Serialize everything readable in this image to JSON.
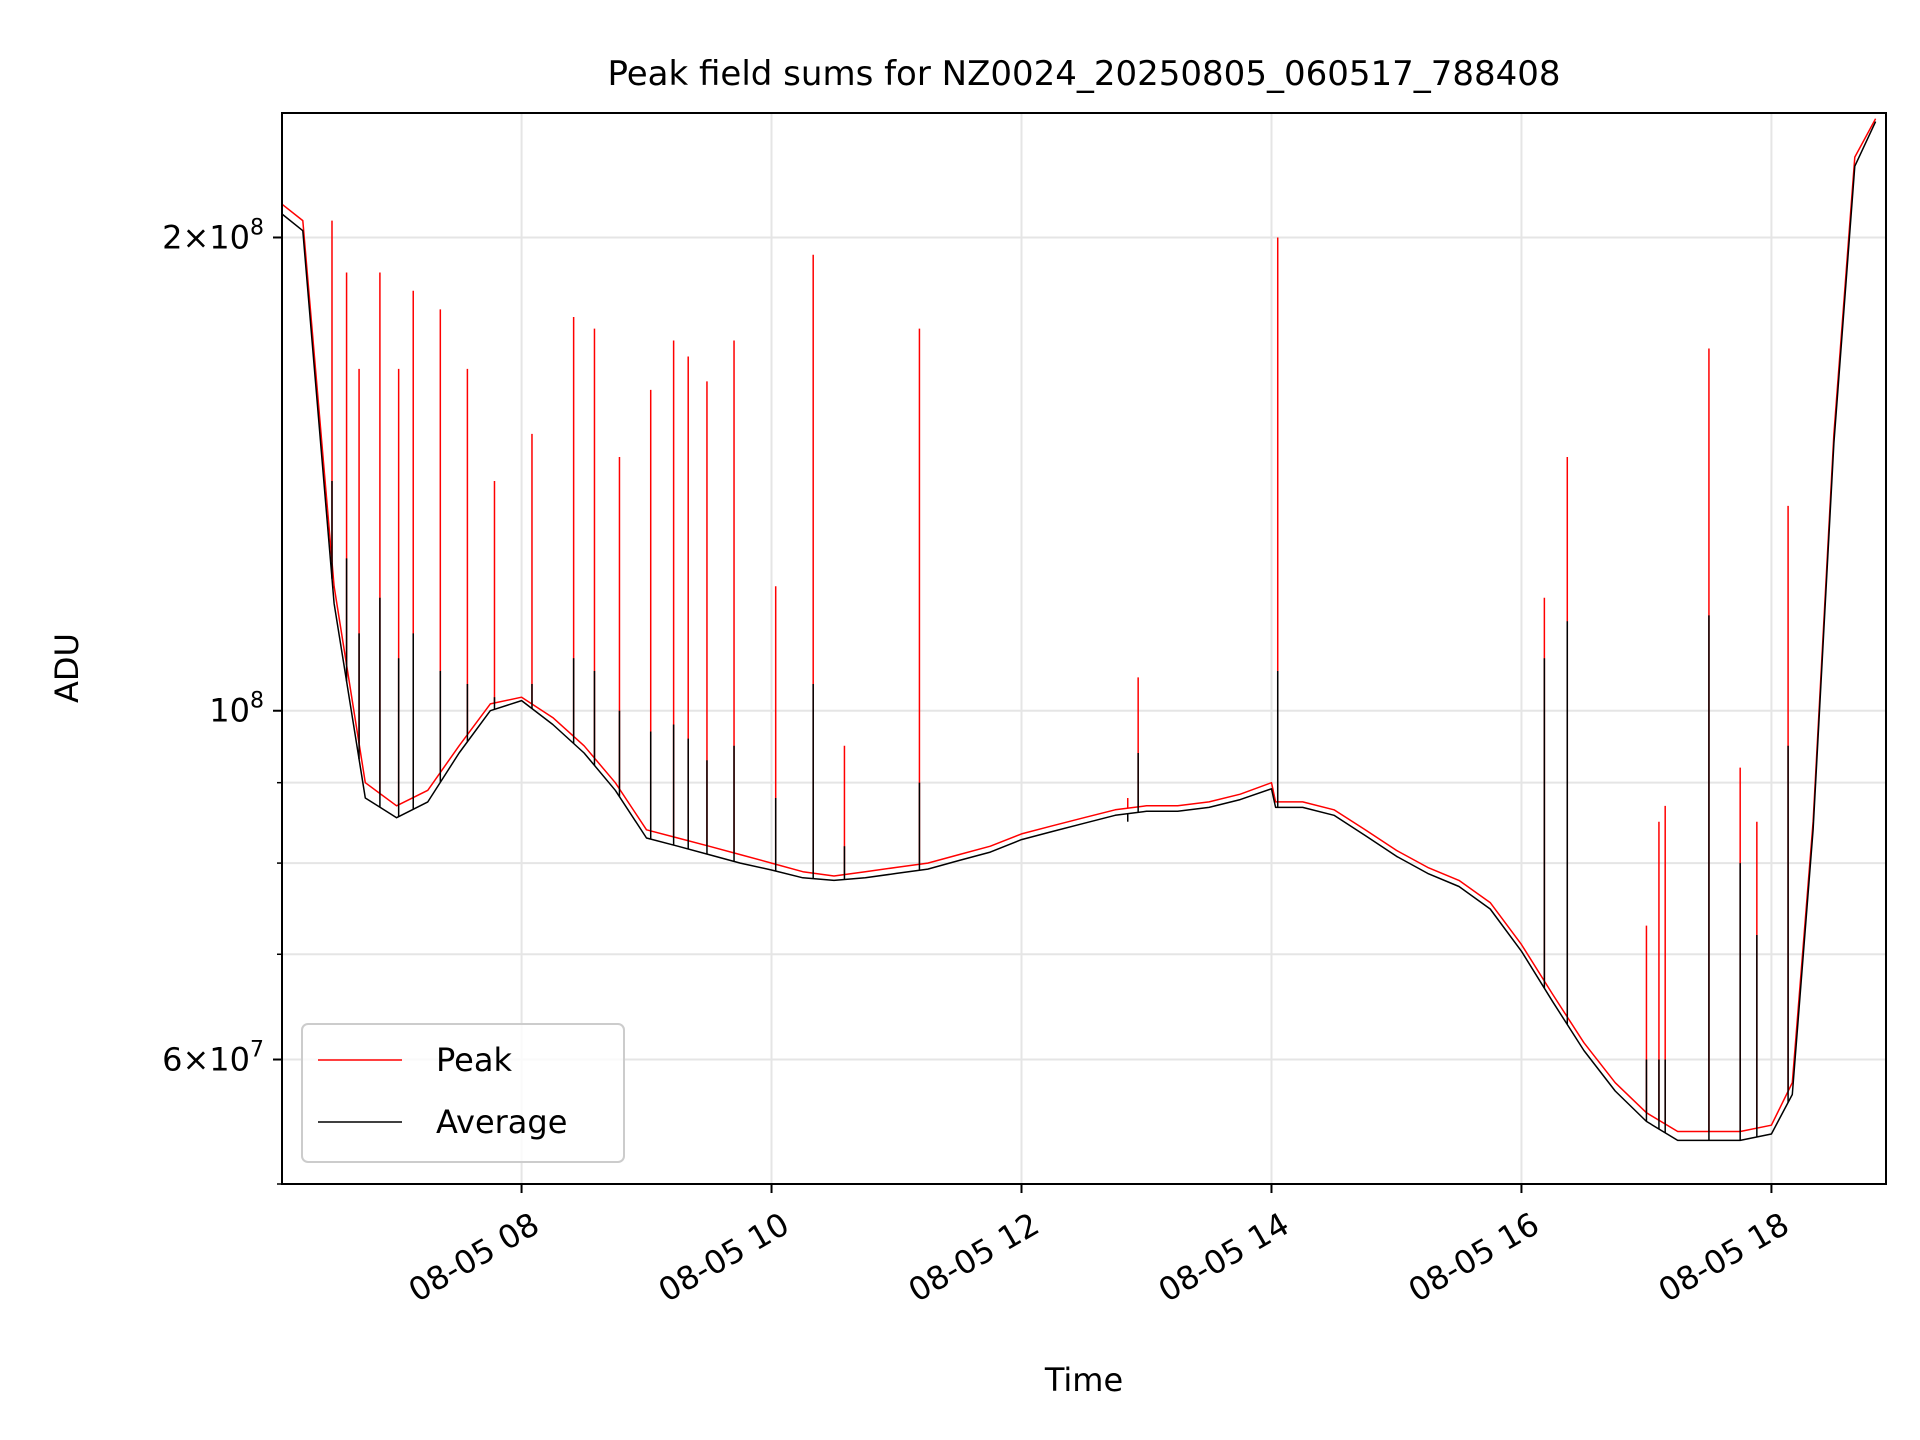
{
  "chart_data": {
    "type": "line",
    "title": "Peak field sums for NZ0024_20250805_060517_788408",
    "xlabel": "Time",
    "ylabel": "ADU",
    "y_scale": "log",
    "ylim": [
      50000000,
      240000000
    ],
    "xlim": [
      "2025-08-05 06:05",
      "2025-08-05 18:55"
    ],
    "grid": true,
    "legend_position": "lower-left",
    "x_tick_labels": [
      "08-05 08",
      "08-05 10",
      "08-05 12",
      "08-05 14",
      "08-05 16",
      "08-05 18"
    ],
    "x_tick_times": [
      "2025-08-05 08:00",
      "2025-08-05 10:00",
      "2025-08-05 12:00",
      "2025-08-05 14:00",
      "2025-08-05 16:00",
      "2025-08-05 18:00"
    ],
    "y_tick_labels": [
      {
        "value": 200000000,
        "mantissa": "2",
        "exponent": "8"
      },
      {
        "value": 100000000,
        "mantissa": "",
        "exponent": "8"
      },
      {
        "value": 60000000,
        "mantissa": "6",
        "exponent": "7"
      }
    ],
    "y_minor_ticks": [
      50000000,
      70000000,
      80000000,
      90000000
    ],
    "series": [
      {
        "name": "Peak",
        "color": "#ff0000",
        "x": [
          "2025-08-05 06:05",
          "2025-08-05 06:15",
          "2025-08-05 06:30",
          "2025-08-05 06:45",
          "2025-08-05 07:00",
          "2025-08-05 07:15",
          "2025-08-05 07:30",
          "2025-08-05 07:45",
          "2025-08-05 08:00",
          "2025-08-05 08:15",
          "2025-08-05 08:30",
          "2025-08-05 08:45",
          "2025-08-05 09:00",
          "2025-08-05 09:15",
          "2025-08-05 09:30",
          "2025-08-05 09:45",
          "2025-08-05 10:00",
          "2025-08-05 10:15",
          "2025-08-05 10:30",
          "2025-08-05 10:45",
          "2025-08-05 11:00",
          "2025-08-05 11:15",
          "2025-08-05 11:30",
          "2025-08-05 11:45",
          "2025-08-05 12:00",
          "2025-08-05 12:15",
          "2025-08-05 12:30",
          "2025-08-05 12:45",
          "2025-08-05 13:00",
          "2025-08-05 13:15",
          "2025-08-05 13:30",
          "2025-08-05 13:45",
          "2025-08-05 14:00",
          "2025-08-05 14:02",
          "2025-08-05 14:15",
          "2025-08-05 14:30",
          "2025-08-05 14:45",
          "2025-08-05 15:00",
          "2025-08-05 15:15",
          "2025-08-05 15:30",
          "2025-08-05 15:45",
          "2025-08-05 16:00",
          "2025-08-05 16:15",
          "2025-08-05 16:30",
          "2025-08-05 16:45",
          "2025-08-05 17:00",
          "2025-08-05 17:15",
          "2025-08-05 17:30",
          "2025-08-05 17:45",
          "2025-08-05 18:00",
          "2025-08-05 18:10",
          "2025-08-05 18:20",
          "2025-08-05 18:30",
          "2025-08-05 18:40",
          "2025-08-05 18:50"
        ],
        "y": [
          210000000,
          205000000,
          120000000,
          90000000,
          87000000,
          89000000,
          95000000,
          101000000,
          102000000,
          99000000,
          95000000,
          90000000,
          84000000,
          83000000,
          82000000,
          81000000,
          80000000,
          79000000,
          78500000,
          79000000,
          79500000,
          80000000,
          81000000,
          82000000,
          83500000,
          84500000,
          85500000,
          86500000,
          87000000,
          87000000,
          87500000,
          88500000,
          90000000,
          87500000,
          87500000,
          86500000,
          84000000,
          81500000,
          79500000,
          78000000,
          75500000,
          71000000,
          66000000,
          61500000,
          58000000,
          55500000,
          54000000,
          54000000,
          54000000,
          54500000,
          58000000,
          85000000,
          150000000,
          225000000,
          238000000
        ]
      },
      {
        "name": "Average",
        "color": "#000000",
        "x": [
          "2025-08-05 06:05",
          "2025-08-05 06:15",
          "2025-08-05 06:30",
          "2025-08-05 06:45",
          "2025-08-05 07:00",
          "2025-08-05 07:15",
          "2025-08-05 07:30",
          "2025-08-05 07:45",
          "2025-08-05 08:00",
          "2025-08-05 08:15",
          "2025-08-05 08:30",
          "2025-08-05 08:45",
          "2025-08-05 09:00",
          "2025-08-05 09:15",
          "2025-08-05 09:30",
          "2025-08-05 09:45",
          "2025-08-05 10:00",
          "2025-08-05 10:15",
          "2025-08-05 10:30",
          "2025-08-05 10:45",
          "2025-08-05 11:00",
          "2025-08-05 11:15",
          "2025-08-05 11:30",
          "2025-08-05 11:45",
          "2025-08-05 12:00",
          "2025-08-05 12:15",
          "2025-08-05 12:30",
          "2025-08-05 12:45",
          "2025-08-05 13:00",
          "2025-08-05 13:15",
          "2025-08-05 13:30",
          "2025-08-05 13:45",
          "2025-08-05 14:00",
          "2025-08-05 14:02",
          "2025-08-05 14:15",
          "2025-08-05 14:30",
          "2025-08-05 14:45",
          "2025-08-05 15:00",
          "2025-08-05 15:15",
          "2025-08-05 15:30",
          "2025-08-05 15:45",
          "2025-08-05 16:00",
          "2025-08-05 16:15",
          "2025-08-05 16:30",
          "2025-08-05 16:45",
          "2025-08-05 17:00",
          "2025-08-05 17:15",
          "2025-08-05 17:30",
          "2025-08-05 17:45",
          "2025-08-05 18:00",
          "2025-08-05 18:10",
          "2025-08-05 18:20",
          "2025-08-05 18:30",
          "2025-08-05 18:40",
          "2025-08-05 18:50"
        ],
        "y": [
          207000000,
          202000000,
          117000000,
          88000000,
          85500000,
          87500000,
          94000000,
          100000000,
          101500000,
          98000000,
          94000000,
          89000000,
          83000000,
          82000000,
          81000000,
          80000000,
          79200000,
          78300000,
          78000000,
          78300000,
          78800000,
          79300000,
          80300000,
          81300000,
          82800000,
          83800000,
          84800000,
          85800000,
          86300000,
          86300000,
          86800000,
          87800000,
          89200000,
          86800000,
          86800000,
          85800000,
          83300000,
          80800000,
          78800000,
          77300000,
          74800000,
          70300000,
          65300000,
          60800000,
          57300000,
          54800000,
          53300000,
          53300000,
          53300000,
          53800000,
          57000000,
          84000000,
          148000000,
          222000000,
          237000000
        ]
      }
    ],
    "spikes": [
      {
        "x": "2025-08-05 06:29",
        "peak": 205000000,
        "average": 140000000
      },
      {
        "x": "2025-08-05 06:36",
        "peak": 190000000,
        "average": 125000000
      },
      {
        "x": "2025-08-05 06:42",
        "peak": 165000000,
        "average": 112000000
      },
      {
        "x": "2025-08-05 06:52",
        "peak": 190000000,
        "average": 118000000
      },
      {
        "x": "2025-08-05 07:01",
        "peak": 165000000,
        "average": 108000000
      },
      {
        "x": "2025-08-05 07:08",
        "peak": 185000000,
        "average": 112000000
      },
      {
        "x": "2025-08-05 07:21",
        "peak": 180000000,
        "average": 106000000
      },
      {
        "x": "2025-08-05 07:34",
        "peak": 165000000,
        "average": 104000000
      },
      {
        "x": "2025-08-05 07:47",
        "peak": 140000000,
        "average": 102000000
      },
      {
        "x": "2025-08-05 08:05",
        "peak": 150000000,
        "average": 104000000
      },
      {
        "x": "2025-08-05 08:25",
        "peak": 178000000,
        "average": 108000000
      },
      {
        "x": "2025-08-05 08:35",
        "peak": 175000000,
        "average": 106000000
      },
      {
        "x": "2025-08-05 08:47",
        "peak": 145000000,
        "average": 100000000
      },
      {
        "x": "2025-08-05 09:02",
        "peak": 160000000,
        "average": 97000000
      },
      {
        "x": "2025-08-05 09:13",
        "peak": 172000000,
        "average": 98000000
      },
      {
        "x": "2025-08-05 09:20",
        "peak": 168000000,
        "average": 96000000
      },
      {
        "x": "2025-08-05 09:29",
        "peak": 162000000,
        "average": 93000000
      },
      {
        "x": "2025-08-05 09:42",
        "peak": 172000000,
        "average": 95000000
      },
      {
        "x": "2025-08-05 10:02",
        "peak": 120000000,
        "average": 88000000
      },
      {
        "x": "2025-08-05 10:20",
        "peak": 195000000,
        "average": 104000000
      },
      {
        "x": "2025-08-05 10:35",
        "peak": 95000000,
        "average": 82000000
      },
      {
        "x": "2025-08-05 11:11",
        "peak": 175000000,
        "average": 90000000
      },
      {
        "x": "2025-08-05 12:51",
        "peak": 88000000,
        "average": 85000000
      },
      {
        "x": "2025-08-05 12:56",
        "peak": 105000000,
        "average": 94000000
      },
      {
        "x": "2025-08-05 14:03",
        "peak": 200000000,
        "average": 106000000
      },
      {
        "x": "2025-08-05 16:11",
        "peak": 118000000,
        "average": 108000000
      },
      {
        "x": "2025-08-05 16:22",
        "peak": 145000000,
        "average": 114000000
      },
      {
        "x": "2025-08-05 17:00",
        "peak": 73000000,
        "average": 60000000
      },
      {
        "x": "2025-08-05 17:06",
        "peak": 85000000,
        "average": 60000000
      },
      {
        "x": "2025-08-05 17:09",
        "peak": 87000000,
        "average": 60000000
      },
      {
        "x": "2025-08-05 17:30",
        "peak": 170000000,
        "average": 115000000
      },
      {
        "x": "2025-08-05 17:45",
        "peak": 92000000,
        "average": 80000000
      },
      {
        "x": "2025-08-05 17:53",
        "peak": 85000000,
        "average": 72000000
      },
      {
        "x": "2025-08-05 18:08",
        "peak": 135000000,
        "average": 95000000
      }
    ]
  },
  "legend": {
    "items": [
      {
        "label": "Peak",
        "color": "#ff0000"
      },
      {
        "label": "Average",
        "color": "#000000"
      }
    ]
  }
}
